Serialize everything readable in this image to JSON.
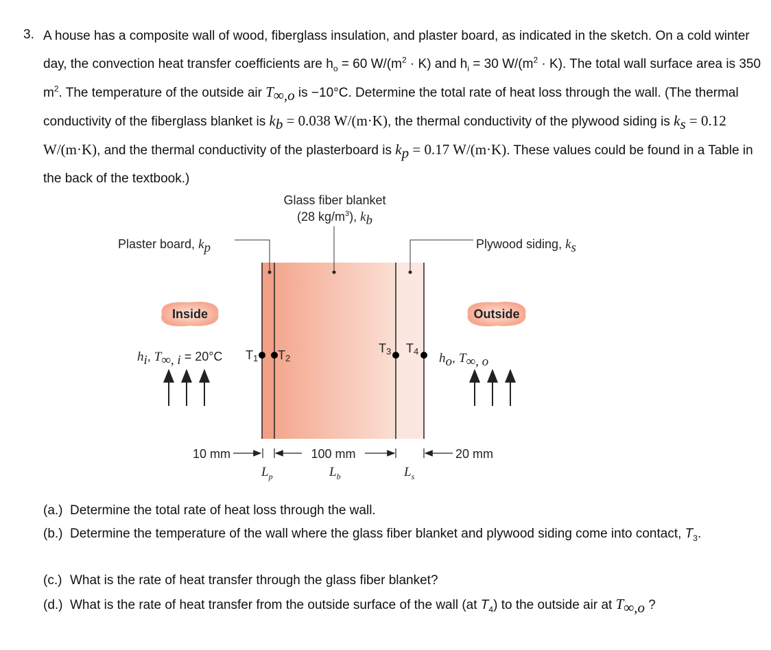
{
  "problem": {
    "number": "3.",
    "intro": [
      "A house has a composite wall of wood, fiberglass insulation, and plaster board, as indicated in the sketch. On a cold winter day, the convection heat transfer coefficients are h",
      "o",
      " = 60 W/(m",
      "2",
      " · K) and h",
      "i",
      " = 30 W/(m",
      "2",
      " · K). The total wall surface area is 350 m",
      "2",
      ". The temperature of the outside air ",
      "T",
      "∞,o",
      " is −10°C. Determine the total rate of heat loss through the wall. (The thermal conductivity of the fiberglass blanket is ",
      "k",
      "b",
      " = 0.038 W/(m·K)",
      ", the thermal conductivity of the plywood siding is ",
      "k",
      "s",
      " = 0.12 W/(m·K)",
      ", and the thermal conductivity of the plasterboard is ",
      "k",
      "p",
      " = 0.17 W/(m·K)",
      ". These values could be found in a Table in the back of the textbook.)"
    ]
  },
  "figure": {
    "blanket_label": [
      "Glass fiber blanket",
      "(28 kg/m",
      "3",
      "), ",
      "k",
      "b"
    ],
    "plaster_label": [
      "Plaster board, ",
      "k",
      "p"
    ],
    "siding_label": [
      "Plywood siding, ",
      "k",
      "s"
    ],
    "inside": "Inside",
    "outside": "Outside",
    "inside_conditions": [
      "h",
      "i",
      ", ",
      "T",
      "∞, i",
      " = 20°C"
    ],
    "outside_conditions": [
      "h",
      "o",
      ", ",
      "T",
      "∞, o"
    ],
    "temperatures": [
      [
        "T",
        "1"
      ],
      [
        "T",
        "2"
      ],
      [
        "T",
        "3"
      ],
      [
        "T",
        "4"
      ]
    ],
    "dimensions": [
      "10 mm",
      "100 mm",
      "20 mm"
    ],
    "lengths": [
      [
        "L",
        "p"
      ],
      [
        "L",
        "b"
      ],
      [
        "L",
        "s"
      ]
    ]
  },
  "questions": [
    {
      "label": "(a.)",
      "text": [
        "Determine the total rate of heat loss through the wall."
      ]
    },
    {
      "label": "(b.)",
      "text": [
        "Determine the temperature of the wall where the glass fiber blanket and plywood siding come into contact, ",
        "T",
        "3",
        "."
      ]
    },
    {
      "label": "(c.)",
      "text": [
        "What is the rate of heat transfer through the glass fiber blanket?"
      ]
    },
    {
      "label": "(d.)",
      "text": [
        "What is the rate of heat transfer from the outside surface of the wall (at ",
        "T",
        "4",
        ") to the outside air at ",
        "T",
        "∞,o",
        " ?"
      ]
    }
  ]
}
